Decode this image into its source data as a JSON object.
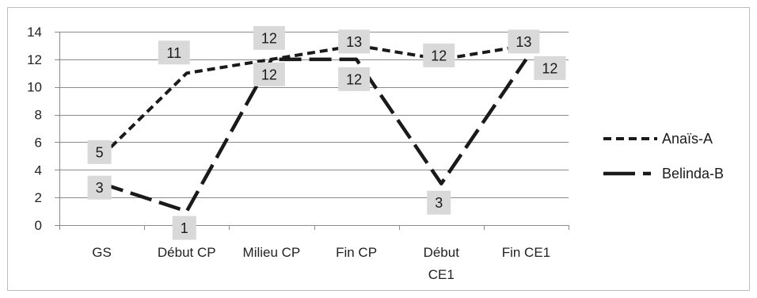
{
  "chart_data": {
    "type": "line",
    "title": "",
    "xlabel": "",
    "ylabel": "",
    "categories": [
      "GS",
      "Début CP",
      "Milieu CP",
      "Fin CP",
      "Début CE1",
      "Fin CE1"
    ],
    "ylim": [
      0,
      14
    ],
    "yticks": [
      0,
      2,
      4,
      6,
      8,
      10,
      12,
      14
    ],
    "grid": true,
    "legend_position": "right",
    "series": [
      {
        "name": "Anaïs-A",
        "values": [
          5,
          11,
          12,
          13,
          12,
          13
        ],
        "color": "#1a1a1a",
        "dash": "short"
      },
      {
        "name": "Belinda-B",
        "values": [
          3,
          1,
          12,
          12,
          3,
          12
        ],
        "color": "#1a1a1a",
        "dash": "long"
      }
    ]
  }
}
